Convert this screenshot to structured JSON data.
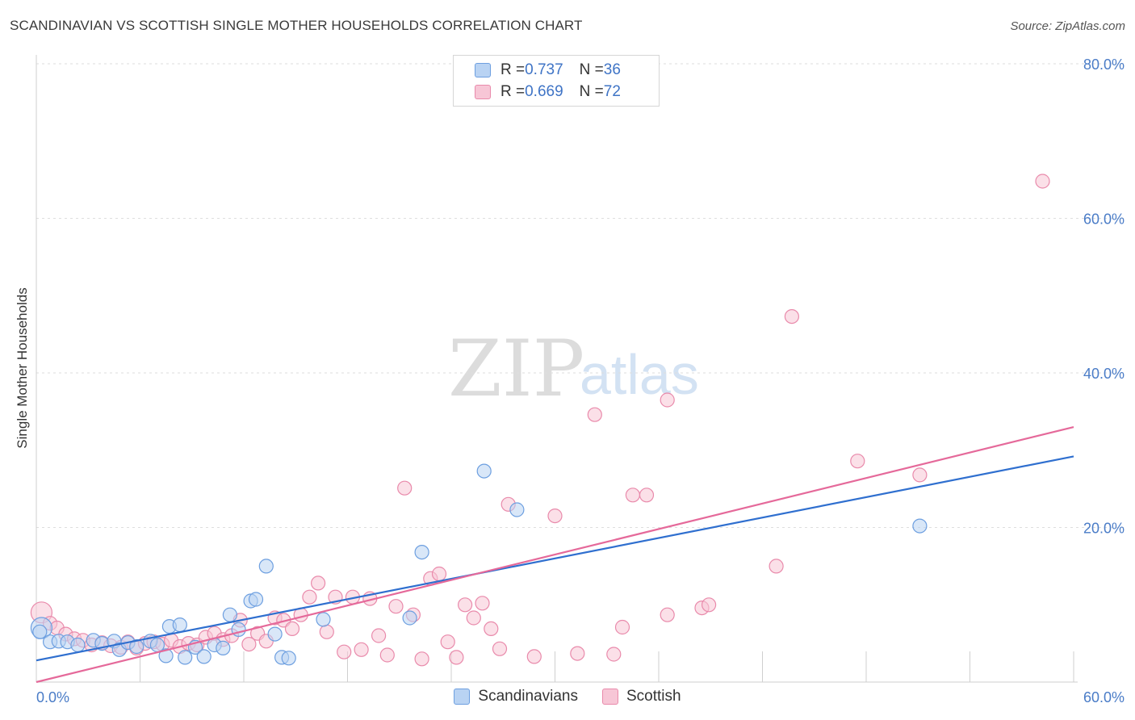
{
  "header": {
    "title": "SCANDINAVIAN VS SCOTTISH SINGLE MOTHER HOUSEHOLDS CORRELATION CHART",
    "source": "Source: ZipAtlas.com"
  },
  "watermark": {
    "zip": "ZIP",
    "atlas": "atlas"
  },
  "legend": {
    "rows": [
      {
        "r_label": "R = ",
        "r_value": "0.737",
        "n_label": "N = ",
        "n_value": "36"
      },
      {
        "r_label": "R = ",
        "r_value": "0.669",
        "n_label": "N = ",
        "n_value": "72"
      }
    ]
  },
  "bottom_legend": {
    "scandinavians": "Scandinavians",
    "scottish": "Scottish"
  },
  "colors": {
    "blue_fill": "#b9d3f3",
    "blue_stroke": "#6d9fe0",
    "blue_line": "#2f6fcf",
    "pink_fill": "#f7c6d6",
    "pink_stroke": "#e98aab",
    "pink_line": "#e5699a",
    "tick_text": "#4a7cc7"
  },
  "chart_data": {
    "type": "scatter",
    "title": "SCANDINAVIAN VS SCOTTISH SINGLE MOTHER HOUSEHOLDS CORRELATION CHART",
    "xlabel": "",
    "ylabel": "Single Mother Households",
    "xlim": [
      0,
      60
    ],
    "ylim": [
      0,
      80
    ],
    "x_tick_labels": [
      "0.0%",
      "60.0%"
    ],
    "y_ticks": [
      20,
      40,
      60,
      80
    ],
    "y_tick_labels": [
      "20.0%",
      "40.0%",
      "60.0%",
      "80.0%"
    ],
    "grid": true,
    "legend_position": "top-center",
    "series": [
      {
        "name": "Scandinavians",
        "r": 0.737,
        "n": 36,
        "trend": {
          "x": [
            0,
            60
          ],
          "y": [
            2.8,
            29.2
          ]
        },
        "points": [
          [
            0.3,
            7.0
          ],
          [
            0.8,
            5.2
          ],
          [
            1.3,
            5.3
          ],
          [
            1.8,
            5.2
          ],
          [
            2.4,
            4.8
          ],
          [
            3.3,
            5.4
          ],
          [
            3.8,
            5.0
          ],
          [
            4.5,
            5.3
          ],
          [
            4.8,
            4.2
          ],
          [
            5.3,
            5.1
          ],
          [
            5.8,
            4.6
          ],
          [
            6.6,
            5.3
          ],
          [
            7.0,
            4.8
          ],
          [
            7.5,
            3.4
          ],
          [
            7.7,
            7.2
          ],
          [
            8.3,
            7.4
          ],
          [
            8.6,
            3.2
          ],
          [
            9.2,
            4.5
          ],
          [
            9.7,
            3.3
          ],
          [
            10.3,
            4.8
          ],
          [
            10.8,
            4.4
          ],
          [
            11.2,
            8.7
          ],
          [
            11.7,
            6.8
          ],
          [
            12.4,
            10.5
          ],
          [
            12.7,
            10.7
          ],
          [
            13.3,
            15.0
          ],
          [
            13.8,
            6.2
          ],
          [
            14.2,
            3.2
          ],
          [
            14.6,
            3.1
          ],
          [
            16.6,
            8.1
          ],
          [
            21.6,
            8.3
          ],
          [
            22.3,
            16.8
          ],
          [
            25.9,
            27.3
          ],
          [
            27.8,
            22.3
          ],
          [
            51.1,
            20.2
          ],
          [
            0.2,
            6.5
          ]
        ]
      },
      {
        "name": "Scottish",
        "r": 0.669,
        "n": 72,
        "trend": {
          "x": [
            0,
            60
          ],
          "y": [
            0.0,
            33.0
          ]
        },
        "points": [
          [
            0.3,
            9.0
          ],
          [
            0.8,
            7.6
          ],
          [
            1.2,
            7.0
          ],
          [
            1.7,
            6.2
          ],
          [
            2.2,
            5.6
          ],
          [
            2.7,
            5.4
          ],
          [
            3.2,
            4.8
          ],
          [
            3.8,
            5.1
          ],
          [
            4.3,
            4.7
          ],
          [
            4.9,
            4.5
          ],
          [
            5.3,
            5.2
          ],
          [
            5.8,
            4.4
          ],
          [
            6.3,
            5.0
          ],
          [
            6.8,
            5.2
          ],
          [
            7.3,
            4.9
          ],
          [
            7.8,
            5.4
          ],
          [
            8.3,
            4.6
          ],
          [
            8.8,
            5.0
          ],
          [
            9.3,
            4.8
          ],
          [
            9.8,
            5.8
          ],
          [
            10.3,
            6.3
          ],
          [
            10.8,
            5.5
          ],
          [
            11.3,
            6.0
          ],
          [
            11.8,
            8.0
          ],
          [
            12.3,
            4.9
          ],
          [
            12.8,
            6.3
          ],
          [
            13.3,
            5.3
          ],
          [
            13.8,
            8.3
          ],
          [
            14.3,
            8.0
          ],
          [
            14.8,
            6.9
          ],
          [
            15.3,
            8.7
          ],
          [
            15.8,
            11.0
          ],
          [
            16.3,
            12.8
          ],
          [
            16.8,
            6.5
          ],
          [
            17.3,
            11.0
          ],
          [
            17.8,
            3.9
          ],
          [
            18.3,
            11.0
          ],
          [
            18.8,
            4.2
          ],
          [
            19.3,
            10.8
          ],
          [
            19.8,
            6.0
          ],
          [
            20.3,
            3.5
          ],
          [
            20.8,
            9.8
          ],
          [
            21.3,
            25.1
          ],
          [
            21.8,
            8.7
          ],
          [
            22.3,
            3.0
          ],
          [
            22.8,
            13.4
          ],
          [
            23.3,
            14.0
          ],
          [
            23.8,
            5.2
          ],
          [
            24.3,
            3.2
          ],
          [
            24.8,
            10.0
          ],
          [
            25.3,
            8.3
          ],
          [
            25.8,
            10.2
          ],
          [
            26.3,
            6.9
          ],
          [
            26.8,
            4.3
          ],
          [
            27.3,
            23.0
          ],
          [
            28.8,
            3.3
          ],
          [
            30.0,
            21.5
          ],
          [
            31.3,
            3.7
          ],
          [
            32.3,
            34.6
          ],
          [
            33.4,
            3.6
          ],
          [
            33.9,
            7.1
          ],
          [
            34.5,
            24.2
          ],
          [
            35.3,
            24.2
          ],
          [
            36.5,
            8.7
          ],
          [
            36.5,
            36.5
          ],
          [
            38.5,
            9.6
          ],
          [
            38.9,
            10.0
          ],
          [
            42.8,
            15.0
          ],
          [
            43.7,
            47.3
          ],
          [
            47.5,
            28.6
          ],
          [
            51.1,
            26.8
          ],
          [
            58.2,
            64.8
          ]
        ]
      }
    ]
  }
}
